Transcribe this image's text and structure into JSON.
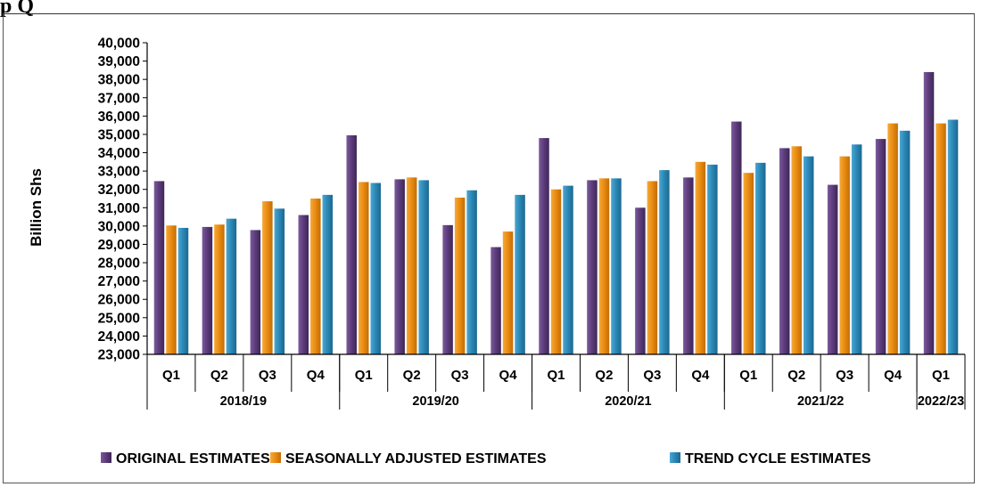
{
  "page": {
    "title_fragment": "p Q"
  },
  "chart_data": {
    "type": "bar",
    "categories": [
      "Q1",
      "Q2",
      "Q3",
      "Q4",
      "Q1",
      "Q2",
      "Q3",
      "Q4",
      "Q1",
      "Q2",
      "Q3",
      "Q4",
      "Q1",
      "Q2",
      "Q3",
      "Q4",
      "Q1"
    ],
    "groups": [
      {
        "label": "2018/19",
        "count": 4
      },
      {
        "label": "2019/20",
        "count": 4
      },
      {
        "label": "2020/21",
        "count": 4
      },
      {
        "label": "2021/22",
        "count": 4
      },
      {
        "label": "2022/23",
        "count": 1
      }
    ],
    "series": [
      {
        "name": "ORIGINAL ESTIMATES",
        "color": "#5b3b7a",
        "values": [
          32450,
          29950,
          29780,
          30600,
          34950,
          32550,
          30050,
          28850,
          34800,
          32500,
          31000,
          32650,
          35700,
          34250,
          32250,
          34750,
          38400
        ]
      },
      {
        "name": "SEASONALLY ADJUSTED ESTIMATES",
        "color": "#e98a10",
        "values": [
          30030,
          30080,
          31350,
          31500,
          32400,
          32650,
          31550,
          29700,
          32000,
          32600,
          32450,
          33500,
          32900,
          34350,
          33800,
          35600,
          35600
        ]
      },
      {
        "name": "TREND CYCLE ESTIMATES",
        "color": "#2a86b4",
        "values": [
          29900,
          30400,
          30950,
          31700,
          32350,
          32500,
          31950,
          31700,
          32200,
          32600,
          33050,
          33350,
          33450,
          33800,
          34450,
          35200,
          35800
        ]
      }
    ],
    "ylabel": "Billion Shs",
    "ylim": [
      23000,
      40000
    ],
    "yticks": [
      "23,000",
      "24,000",
      "25,000",
      "26,000",
      "27,000",
      "28,000",
      "29,000",
      "30,000",
      "31,000",
      "32,000",
      "33,000",
      "34,000",
      "35,000",
      "36,000",
      "37,000",
      "38,000",
      "39,000",
      "40,000"
    ],
    "legend_position": "bottom",
    "grid": false
  }
}
